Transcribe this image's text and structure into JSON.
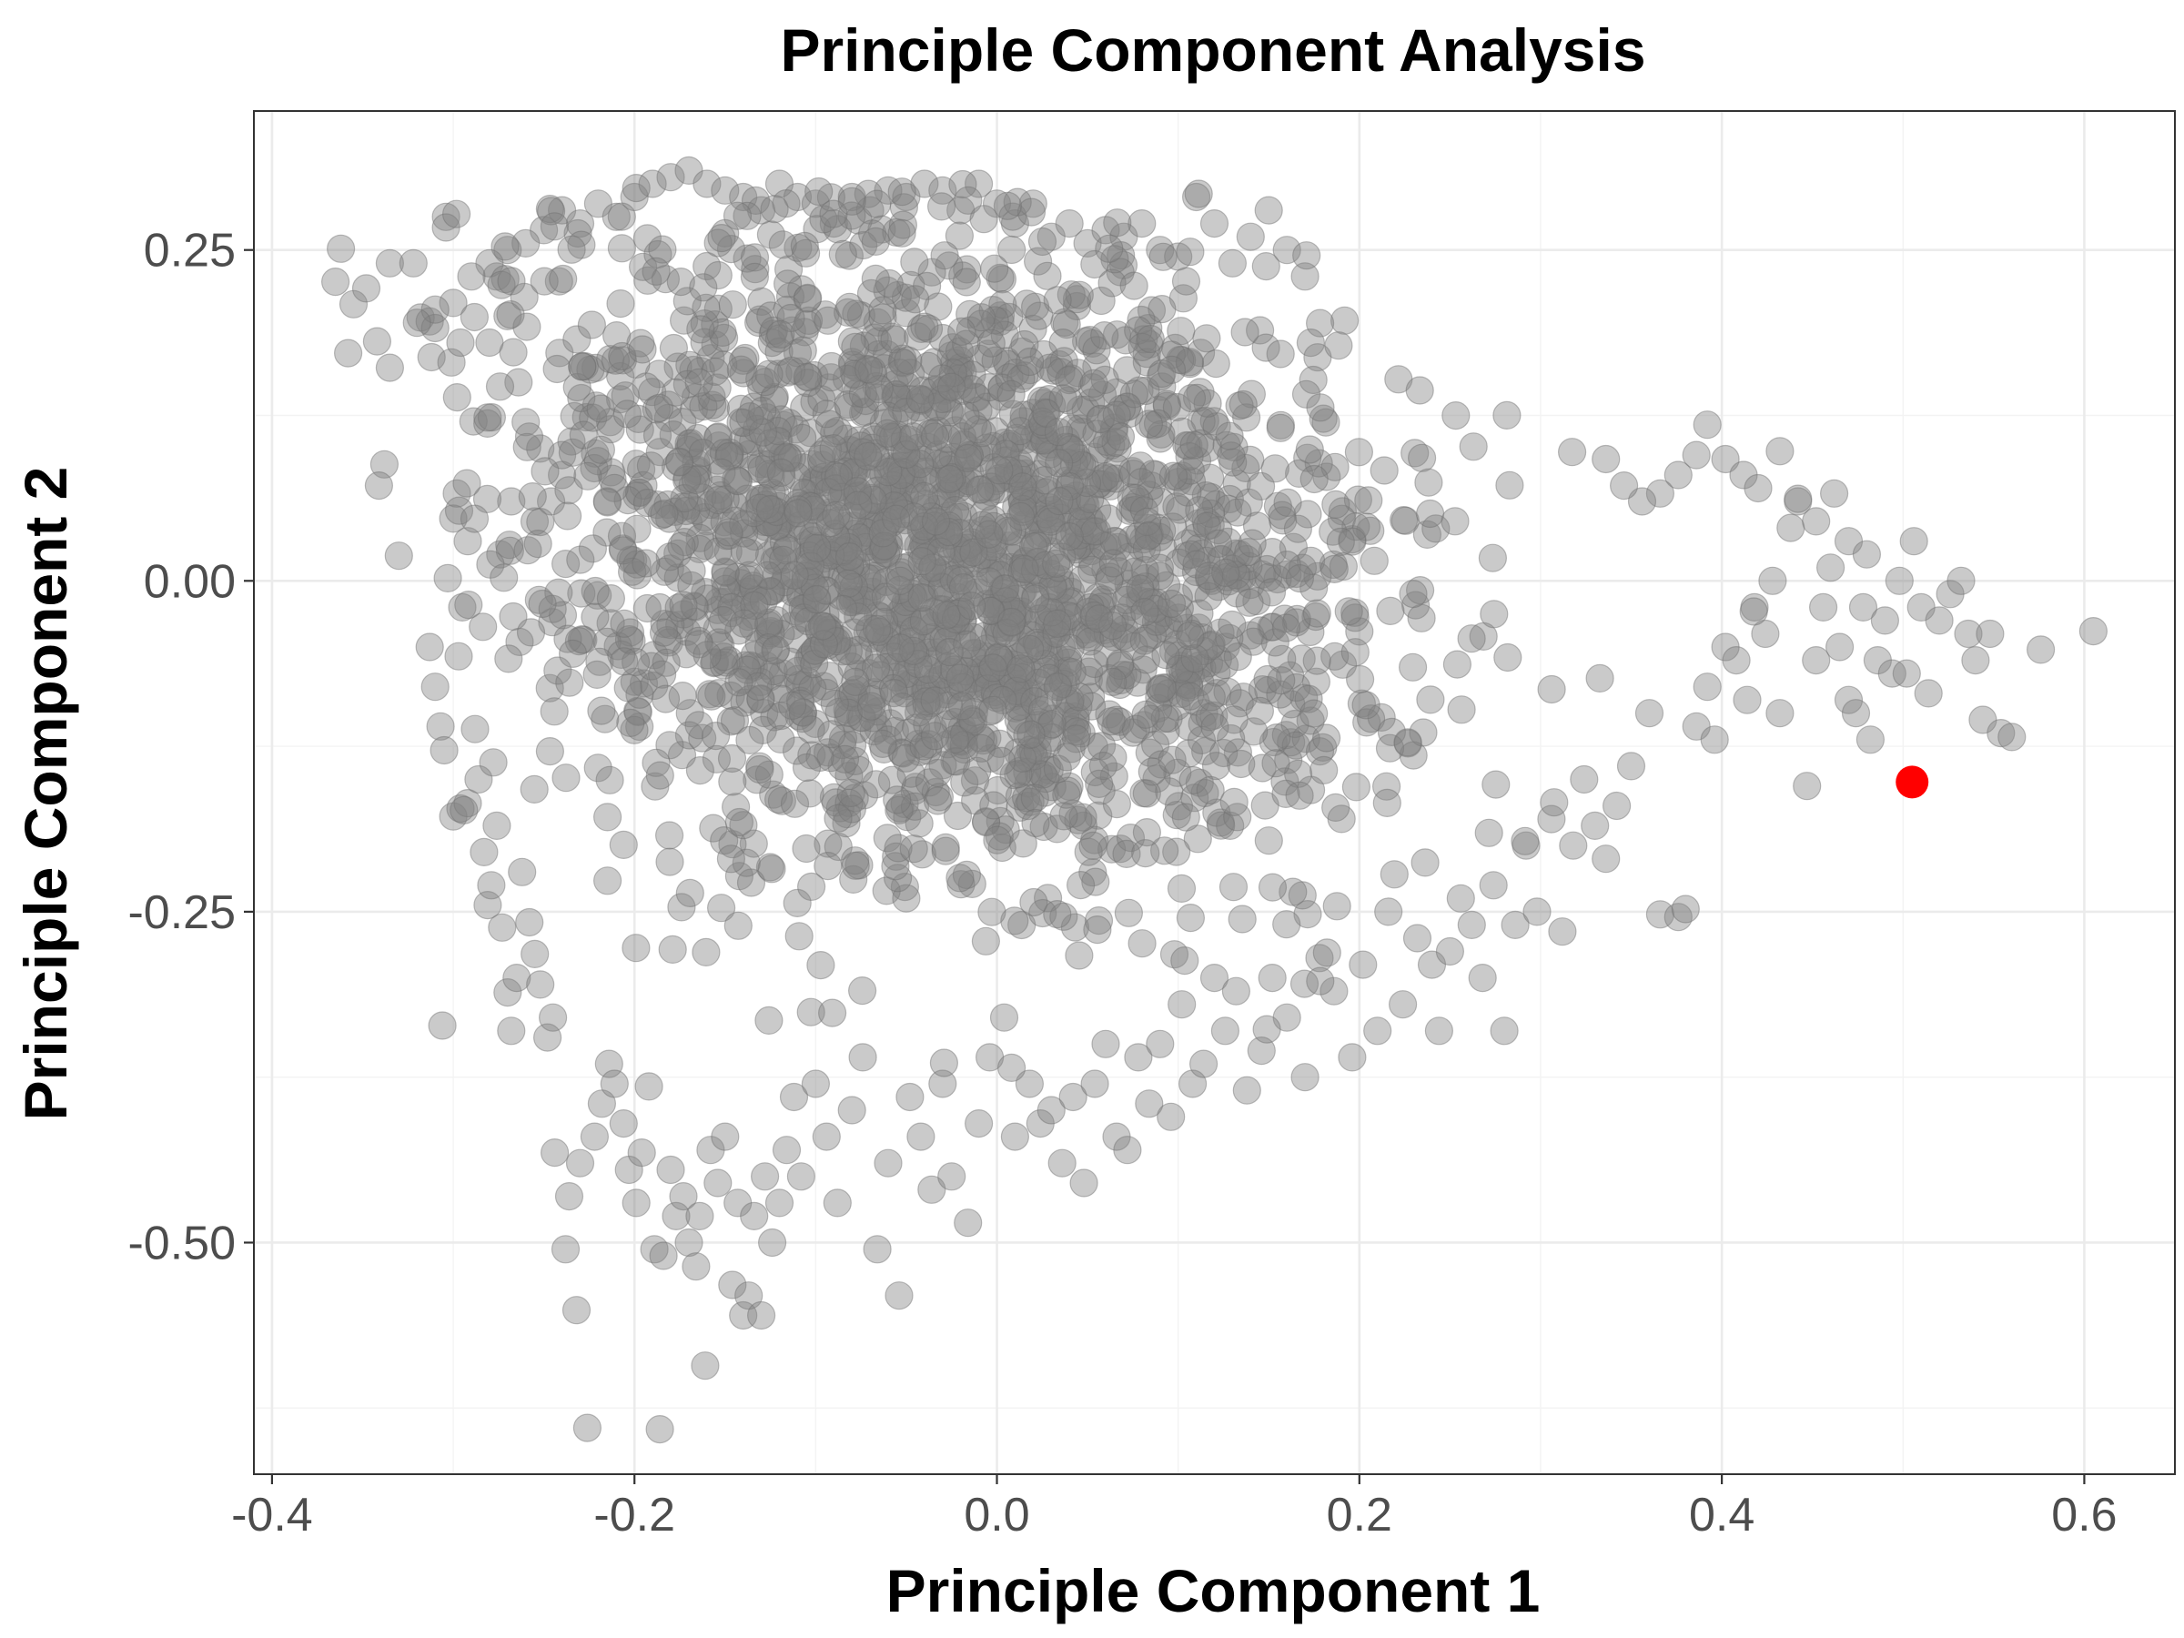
{
  "chart_data": {
    "type": "scatter",
    "title": "Principle Component Analysis",
    "xlabel": "Principle Component 1",
    "ylabel": "Principle Component 2",
    "xlim": [
      -0.41,
      0.65
    ],
    "ylim": [
      -0.675,
      0.355
    ],
    "x_ticks": [
      -0.4,
      -0.2,
      0.0,
      0.2,
      0.4,
      0.6
    ],
    "x_tick_labels": [
      "-0.4",
      "-0.2",
      "0.0",
      "0.2",
      "0.4",
      "0.6"
    ],
    "y_ticks": [
      -0.5,
      -0.25,
      0.0,
      0.25
    ],
    "y_tick_labels": [
      "-0.50",
      "-0.25",
      "0.00",
      "0.25"
    ],
    "grid": true,
    "colors": {
      "points": "#808080",
      "highlight": "#ff0000"
    },
    "highlight_point": {
      "x": 0.505,
      "y": -0.152
    },
    "series": [
      {
        "points": [
          [
            -0.365,
            0.226
          ],
          [
            -0.362,
            0.251
          ],
          [
            -0.358,
            0.172
          ],
          [
            -0.355,
            0.209
          ],
          [
            -0.348,
            0.221
          ],
          [
            -0.342,
            0.181
          ],
          [
            -0.338,
            0.088
          ],
          [
            -0.341,
            0.072
          ],
          [
            -0.335,
            0.161
          ],
          [
            -0.335,
            0.24
          ],
          [
            -0.33,
            0.019
          ],
          [
            -0.322,
            0.24
          ],
          [
            -0.318,
            0.199
          ],
          [
            -0.313,
            0.196
          ],
          [
            -0.312,
            0.169
          ],
          [
            -0.31,
            0.191
          ],
          [
            -0.304,
            0.275
          ],
          [
            -0.304,
            0.267
          ],
          [
            -0.301,
            0.165
          ],
          [
            -0.296,
            0.18
          ],
          [
            -0.313,
            -0.05
          ],
          [
            -0.31,
            -0.08
          ],
          [
            -0.307,
            -0.11
          ],
          [
            -0.305,
            -0.128
          ],
          [
            -0.303,
            0.002
          ],
          [
            -0.3,
            0.047
          ],
          [
            -0.298,
            0.066
          ],
          [
            -0.297,
            -0.057
          ],
          [
            -0.295,
            -0.02
          ],
          [
            -0.292,
            0.03
          ],
          [
            -0.3,
            -0.178
          ],
          [
            -0.296,
            -0.172
          ],
          [
            -0.292,
            -0.168
          ],
          [
            -0.288,
            -0.112
          ],
          [
            -0.286,
            -0.15
          ],
          [
            -0.283,
            -0.205
          ],
          [
            -0.281,
            -0.245
          ],
          [
            -0.279,
            -0.23
          ],
          [
            -0.276,
            -0.185
          ],
          [
            -0.273,
            -0.262
          ],
          [
            -0.306,
            -0.336
          ],
          [
            -0.27,
            -0.311
          ],
          [
            -0.268,
            -0.34
          ],
          [
            -0.265,
            -0.3
          ],
          [
            -0.262,
            -0.22
          ],
          [
            -0.258,
            -0.258
          ],
          [
            -0.255,
            -0.282
          ],
          [
            -0.252,
            -0.305
          ],
          [
            -0.248,
            -0.345
          ],
          [
            -0.245,
            -0.33
          ],
          [
            -0.244,
            -0.432
          ],
          [
            -0.238,
            -0.505
          ],
          [
            -0.236,
            -0.465
          ],
          [
            -0.232,
            -0.551
          ],
          [
            -0.23,
            -0.44
          ],
          [
            -0.226,
            -0.64
          ],
          [
            -0.222,
            -0.42
          ],
          [
            -0.218,
            -0.395
          ],
          [
            -0.214,
            -0.365
          ],
          [
            -0.211,
            -0.38
          ],
          [
            -0.206,
            -0.41
          ],
          [
            -0.203,
            -0.445
          ],
          [
            -0.199,
            -0.47
          ],
          [
            -0.196,
            -0.432
          ],
          [
            -0.192,
            -0.382
          ],
          [
            -0.189,
            -0.505
          ],
          [
            -0.186,
            -0.641
          ],
          [
            -0.184,
            -0.51
          ],
          [
            -0.18,
            -0.445
          ],
          [
            -0.177,
            -0.48
          ],
          [
            -0.173,
            -0.465
          ],
          [
            -0.17,
            -0.5
          ],
          [
            -0.166,
            -0.518
          ],
          [
            -0.164,
            -0.48
          ],
          [
            -0.161,
            -0.593
          ],
          [
            -0.158,
            -0.43
          ],
          [
            -0.154,
            -0.455
          ],
          [
            -0.15,
            -0.42
          ],
          [
            -0.146,
            -0.532
          ],
          [
            -0.143,
            -0.47
          ],
          [
            -0.14,
            -0.555
          ],
          [
            -0.137,
            -0.54
          ],
          [
            -0.134,
            -0.48
          ],
          [
            -0.13,
            -0.555
          ],
          [
            -0.128,
            -0.45
          ],
          [
            -0.124,
            -0.5
          ],
          [
            -0.12,
            -0.47
          ],
          [
            -0.116,
            -0.43
          ],
          [
            -0.112,
            -0.39
          ],
          [
            -0.108,
            -0.45
          ],
          [
            -0.1,
            -0.38
          ],
          [
            -0.094,
            -0.42
          ],
          [
            -0.088,
            -0.47
          ],
          [
            -0.08,
            -0.4
          ],
          [
            -0.074,
            -0.36
          ],
          [
            -0.066,
            -0.505
          ],
          [
            -0.06,
            -0.44
          ],
          [
            -0.054,
            -0.54
          ],
          [
            -0.048,
            -0.39
          ],
          [
            -0.042,
            -0.42
          ],
          [
            -0.036,
            -0.46
          ],
          [
            -0.03,
            -0.38
          ],
          [
            -0.025,
            -0.45
          ],
          [
            -0.016,
            -0.485
          ],
          [
            -0.01,
            -0.41
          ],
          [
            -0.004,
            -0.36
          ],
          [
            0.004,
            -0.33
          ],
          [
            0.01,
            -0.42
          ],
          [
            0.018,
            -0.38
          ],
          [
            0.024,
            -0.41
          ],
          [
            0.03,
            -0.4
          ],
          [
            0.036,
            -0.44
          ],
          [
            0.042,
            -0.39
          ],
          [
            0.048,
            -0.455
          ],
          [
            0.054,
            -0.38
          ],
          [
            0.06,
            -0.35
          ],
          [
            0.066,
            -0.42
          ],
          [
            0.072,
            -0.43
          ],
          [
            0.078,
            -0.36
          ],
          [
            0.084,
            -0.395
          ],
          [
            0.09,
            -0.35
          ],
          [
            0.096,
            -0.405
          ],
          [
            0.102,
            -0.32
          ],
          [
            0.108,
            -0.38
          ],
          [
            0.114,
            -0.365
          ],
          [
            0.12,
            -0.3
          ],
          [
            0.126,
            -0.34
          ],
          [
            0.132,
            -0.31
          ],
          [
            0.138,
            -0.385
          ],
          [
            0.146,
            -0.355
          ],
          [
            0.152,
            -0.3
          ],
          [
            0.16,
            -0.33
          ],
          [
            0.17,
            -0.375
          ],
          [
            0.178,
            -0.285
          ],
          [
            0.186,
            -0.31
          ],
          [
            0.196,
            -0.36
          ],
          [
            0.202,
            -0.29
          ],
          [
            0.21,
            -0.34
          ],
          [
            0.216,
            -0.25
          ],
          [
            0.224,
            -0.32
          ],
          [
            0.232,
            -0.27
          ],
          [
            0.24,
            -0.29
          ],
          [
            0.244,
            -0.34
          ],
          [
            0.25,
            -0.28
          ],
          [
            0.256,
            -0.24
          ],
          [
            0.262,
            -0.26
          ],
          [
            0.268,
            -0.3
          ],
          [
            0.274,
            -0.23
          ],
          [
            0.28,
            -0.34
          ],
          [
            0.286,
            -0.26
          ],
          [
            0.292,
            -0.2
          ],
          [
            0.298,
            -0.25
          ],
          [
            0.306,
            -0.18
          ],
          [
            0.312,
            -0.265
          ],
          [
            0.318,
            -0.2
          ],
          [
            0.324,
            -0.15
          ],
          [
            0.33,
            -0.185
          ],
          [
            0.336,
            -0.21
          ],
          [
            0.342,
            -0.17
          ],
          [
            0.35,
            -0.14
          ],
          [
            0.36,
            -0.1
          ],
          [
            0.366,
            -0.252
          ],
          [
            0.376,
            -0.254
          ],
          [
            0.38,
            -0.248
          ],
          [
            0.386,
            -0.11
          ],
          [
            0.392,
            -0.08
          ],
          [
            0.396,
            -0.12
          ],
          [
            0.402,
            -0.05
          ],
          [
            0.408,
            -0.06
          ],
          [
            0.414,
            -0.09
          ],
          [
            0.418,
            -0.02
          ],
          [
            0.424,
            -0.04
          ],
          [
            0.428,
            0.0
          ],
          [
            0.432,
            -0.1
          ],
          [
            0.438,
            0.04
          ],
          [
            0.442,
            0.06
          ],
          [
            0.447,
            -0.155
          ],
          [
            0.452,
            -0.06
          ],
          [
            0.456,
            -0.02
          ],
          [
            0.46,
            0.01
          ],
          [
            0.465,
            -0.05
          ],
          [
            0.47,
            -0.09
          ],
          [
            0.474,
            -0.1
          ],
          [
            0.478,
            -0.02
          ],
          [
            0.482,
            -0.12
          ],
          [
            0.486,
            -0.06
          ],
          [
            0.49,
            -0.03
          ],
          [
            0.494,
            -0.07
          ],
          [
            0.498,
            0.0
          ],
          [
            0.502,
            -0.07
          ],
          [
            0.506,
            0.03
          ],
          [
            0.51,
            -0.02
          ],
          [
            0.514,
            -0.085
          ],
          [
            0.52,
            -0.03
          ],
          [
            0.526,
            -0.01
          ],
          [
            0.532,
            0.0
          ],
          [
            0.536,
            -0.04
          ],
          [
            0.54,
            -0.06
          ],
          [
            0.544,
            -0.105
          ],
          [
            0.548,
            -0.04
          ],
          [
            0.554,
            -0.115
          ],
          [
            0.56,
            -0.118
          ],
          [
            0.576,
            -0.052
          ],
          [
            0.605,
            -0.038
          ],
          [
            0.392,
            0.118
          ],
          [
            0.402,
            0.092
          ],
          [
            0.412,
            0.08
          ],
          [
            0.42,
            0.07
          ],
          [
            0.432,
            0.098
          ],
          [
            0.442,
            0.062
          ],
          [
            0.452,
            0.045
          ],
          [
            0.462,
            0.066
          ],
          [
            0.47,
            0.03
          ],
          [
            0.48,
            0.02
          ],
          [
            0.386,
            0.095
          ],
          [
            0.376,
            0.08
          ],
          [
            0.366,
            0.066
          ],
          [
            0.356,
            0.06
          ],
          [
            0.346,
            0.072
          ],
          [
            0.336,
            0.092
          ],
          [
            -0.26,
            0.12
          ],
          [
            -0.252,
            0.1
          ],
          [
            -0.246,
            0.06
          ],
          [
            -0.24,
            0.08
          ],
          [
            -0.264,
            0.15
          ],
          [
            -0.27,
            0.2
          ],
          [
            -0.276,
            0.23
          ],
          [
            -0.28,
            0.18
          ],
          [
            -0.268,
            0.06
          ],
          [
            -0.274,
            0.02
          ],
          [
            -0.12,
            0.3
          ],
          [
            -0.11,
            0.29
          ],
          [
            -0.1,
            0.285
          ],
          [
            -0.09,
            0.27
          ],
          [
            -0.08,
            0.29
          ],
          [
            -0.07,
            0.28
          ],
          [
            -0.06,
            0.295
          ],
          [
            -0.05,
            0.29
          ],
          [
            -0.04,
            0.3
          ],
          [
            -0.03,
            0.295
          ],
          [
            -0.02,
            0.28
          ],
          [
            -0.01,
            0.3
          ],
          [
            0.0,
            0.285
          ],
          [
            0.01,
            0.27
          ],
          [
            0.02,
            0.285
          ],
          [
            0.03,
            0.26
          ],
          [
            0.04,
            0.27
          ],
          [
            0.05,
            0.255
          ],
          [
            0.06,
            0.265
          ],
          [
            0.07,
            0.26
          ],
          [
            0.08,
            0.27
          ],
          [
            0.09,
            0.25
          ],
          [
            0.1,
            0.245
          ],
          [
            0.11,
            0.29
          ],
          [
            0.12,
            0.27
          ],
          [
            0.13,
            0.24
          ],
          [
            0.14,
            0.26
          ],
          [
            0.15,
            0.28
          ],
          [
            0.16,
            0.25
          ],
          [
            0.17,
            0.23
          ],
          [
            -0.2,
            0.29
          ],
          [
            -0.19,
            0.3
          ],
          [
            -0.18,
            0.305
          ],
          [
            -0.17,
            0.31
          ],
          [
            -0.16,
            0.3
          ],
          [
            -0.15,
            0.295
          ],
          [
            -0.14,
            0.29
          ],
          [
            -0.13,
            0.28
          ],
          [
            -0.22,
            0.285
          ],
          [
            -0.21,
            0.275
          ],
          [
            -0.24,
            0.28
          ],
          [
            -0.23,
            0.27
          ],
          [
            -0.25,
            0.265
          ],
          [
            -0.26,
            0.255
          ],
          [
            -0.27,
            0.25
          ],
          [
            -0.28,
            0.24
          ],
          [
            -0.29,
            0.23
          ],
          [
            -0.3,
            0.21
          ],
          [
            -0.31,
            0.205
          ],
          [
            -0.32,
            0.195
          ]
        ]
      }
    ]
  }
}
